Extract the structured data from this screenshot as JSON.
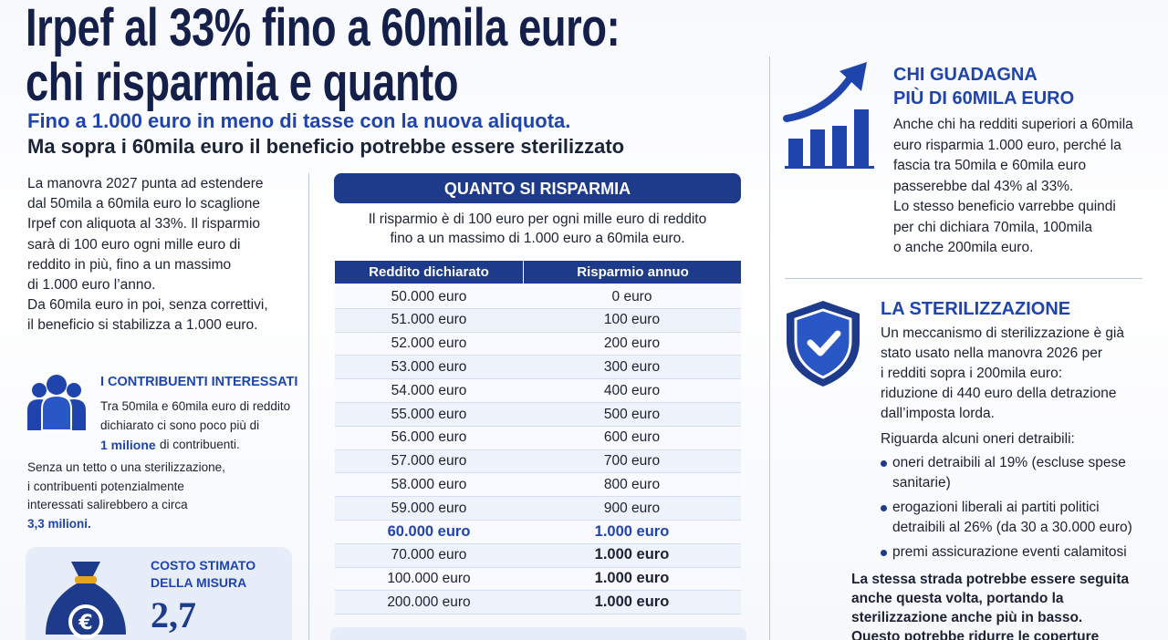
{
  "header": {
    "title_lines": [
      "Irpef al 33% fino a 60mila euro:",
      "chi risparmia e quanto"
    ],
    "subtitle": "Fino a 1.000 euro in meno di tasse con la nuova aliquota.",
    "subtitle_2": "Ma sopra i 60mila euro il beneficio potrebbe essere sterilizzato"
  },
  "intro": {
    "lines": [
      "La manovra 2027 punta ad estendere",
      "dal 50mila a 60mila euro lo scaglione",
      "Irpef con aliquota al 33%. Il risparmio",
      "sarà di 100 euro ogni mille euro di",
      "reddito in più, fino a un massimo",
      "di 1.000 euro l’anno.",
      "Da 60mila euro in poi, senza correttivi,",
      "il beneficio si stabilizza a 1.000 euro."
    ]
  },
  "contributors": {
    "heading": "I CONTRIBUENTI INTERESSATI",
    "lines": [
      "Tra 50mila e 60mila euro di reddito",
      "dichiarato ci sono poco più di"
    ],
    "highlight": "1 milione",
    "after_highlight": "di contribuenti.",
    "note_lines": [
      "Senza un tetto o una sterilizzazione,",
      "i contribuenti potenzialmente",
      "interessati salirebbero a circa"
    ],
    "note_highlight": "3,3 milioni."
  },
  "cost": {
    "heading_lines": [
      "COSTO STIMATO",
      "DELLA MISURA"
    ],
    "value": "2,7"
  },
  "savings": {
    "banner": "QUANTO SI RISPARMIA",
    "description_lines": [
      "Il risparmio è di 100 euro per ogni mille euro di reddito",
      "fino a un massimo di 1.000 euro a 60mila euro."
    ],
    "table": {
      "columns": [
        "Reddito dichiarato",
        "Risparmio annuo"
      ],
      "rows": [
        [
          "50.000 euro",
          "0 euro"
        ],
        [
          "51.000 euro",
          "100 euro"
        ],
        [
          "52.000 euro",
          "200 euro"
        ],
        [
          "53.000 euro",
          "300 euro"
        ],
        [
          "54.000 euro",
          "400 euro"
        ],
        [
          "55.000 euro",
          "500 euro"
        ],
        [
          "56.000 euro",
          "600 euro"
        ],
        [
          "57.000 euro",
          "700 euro"
        ],
        [
          "58.000 euro",
          "800 euro"
        ],
        [
          "59.000 euro",
          "900 euro"
        ],
        [
          "60.000 euro",
          "1.000 euro"
        ],
        [
          "70.000 euro",
          "1.000 euro"
        ],
        [
          "100.000 euro",
          "1.000 euro"
        ],
        [
          "200.000 euro",
          "1.000 euro"
        ]
      ],
      "highlight_row": 10
    }
  },
  "above_60k": {
    "heading_lines": [
      "CHI GUADAGNA",
      "PIÙ DI 60MILA EURO"
    ],
    "lines": [
      "Anche chi ha redditi superiori a 60mila",
      "euro risparmia 1.000 euro, perché la",
      "fascia tra 50mila e 60mila euro",
      "passerebbe dal 43% al 33%.",
      "Lo stesso beneficio varrebbe quindi",
      "per chi dichiara 70mila, 100mila",
      "o anche 200mila euro."
    ]
  },
  "sterilization": {
    "heading": "LA STERILIZZAZIONE",
    "lines": [
      "Un meccanismo di sterilizzazione è già",
      "stato usato nella manovra 2026 per",
      "i redditi sopra i 200mila euro:",
      "riduzione di 440 euro della detrazione",
      "dall’imposta lorda."
    ],
    "intro": "Riguarda alcuni oneri detraibili:",
    "bullets": [
      [
        "oneri detraibili al 19% (escluse spese",
        "sanitarie)"
      ],
      [
        "erogazioni liberali ai partiti politici",
        "detraibili al 26% (da 30 a 30.000 euro)"
      ],
      [
        "premi assicurazione eventi calamitosi"
      ]
    ],
    "closing_lines": [
      "La stessa strada potrebbe essere seguita",
      "anche questa volta, portando la",
      "sterilizzazione anche più in basso.",
      "Questo potrebbe ridurre le coperture"
    ]
  }
}
